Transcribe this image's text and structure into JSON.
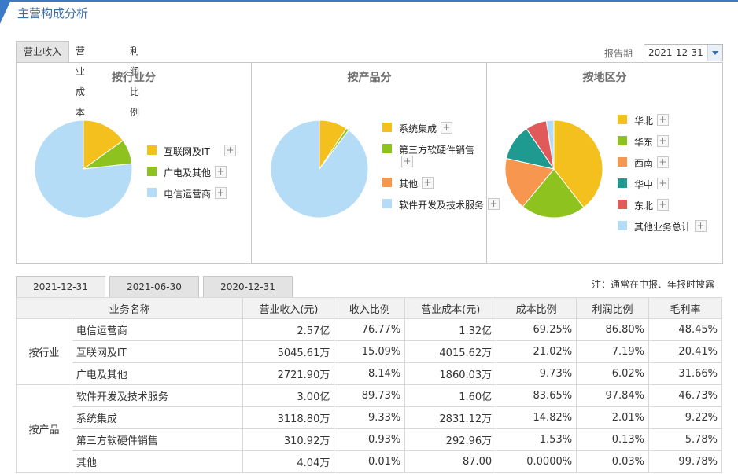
{
  "header": {
    "title": "主营构成分析"
  },
  "top_tabs": [
    "营业收入",
    "营业成本",
    "利润比例"
  ],
  "period": {
    "label": "报告期",
    "value": "2021-12-31"
  },
  "chart_data": [
    {
      "type": "pie",
      "title": "按行业分",
      "categories": [
        "互联网及IT",
        "广电及其他",
        "电信运营商"
      ],
      "values": [
        15.09,
        8.14,
        76.77
      ],
      "colors": [
        "#f4c01e",
        "#8ec31f",
        "#b5dcf7"
      ]
    },
    {
      "type": "pie",
      "title": "按产品分",
      "categories": [
        "系统集成",
        "第三方软硬件销售",
        "其他",
        "软件开发及技术服务"
      ],
      "values": [
        9.33,
        0.93,
        0.01,
        89.73
      ],
      "colors": [
        "#f4c01e",
        "#8ec31f",
        "#f7964f",
        "#b5dcf7"
      ]
    },
    {
      "type": "pie",
      "title": "按地区分",
      "categories": [
        "华北",
        "华东",
        "西南",
        "华中",
        "东北",
        "其他业务总计"
      ],
      "values": [
        39.5,
        21.5,
        17.5,
        12.0,
        7.0,
        2.5
      ],
      "colors": [
        "#f4c01e",
        "#8ec31f",
        "#f7964f",
        "#1f9a90",
        "#e05a5a",
        "#b5dcf7"
      ]
    }
  ],
  "date_tabs": [
    "2021-12-31",
    "2021-06-30",
    "2020-12-31"
  ],
  "note": "注：通常在中报、年报时披露",
  "table": {
    "headers": [
      "业务名称",
      "营业收入(元)",
      "收入比例",
      "营业成本(元)",
      "成本比例",
      "利润比例",
      "毛利率"
    ],
    "groups": [
      {
        "name": "按行业",
        "rows": [
          [
            "电信运营商",
            "2.57亿",
            "76.77%",
            "1.32亿",
            "69.25%",
            "86.80%",
            "48.45%"
          ],
          [
            "互联网及IT",
            "5045.61万",
            "15.09%",
            "4015.62万",
            "21.02%",
            "7.19%",
            "20.41%"
          ],
          [
            "广电及其他",
            "2721.90万",
            "8.14%",
            "1860.03万",
            "9.73%",
            "6.02%",
            "31.66%"
          ]
        ]
      },
      {
        "name": "按产品",
        "rows": [
          [
            "软件开发及技术服务",
            "3.00亿",
            "89.73%",
            "1.60亿",
            "83.65%",
            "97.84%",
            "46.73%"
          ],
          [
            "系统集成",
            "3118.80万",
            "9.33%",
            "2831.12万",
            "14.82%",
            "2.01%",
            "9.22%"
          ],
          [
            "第三方软硬件销售",
            "310.92万",
            "0.93%",
            "292.96万",
            "1.53%",
            "0.13%",
            "5.78%"
          ],
          [
            "其他",
            "4.04万",
            "0.01%",
            "87.00",
            "0.0000%",
            "0.03%",
            "99.78%"
          ]
        ]
      }
    ]
  }
}
